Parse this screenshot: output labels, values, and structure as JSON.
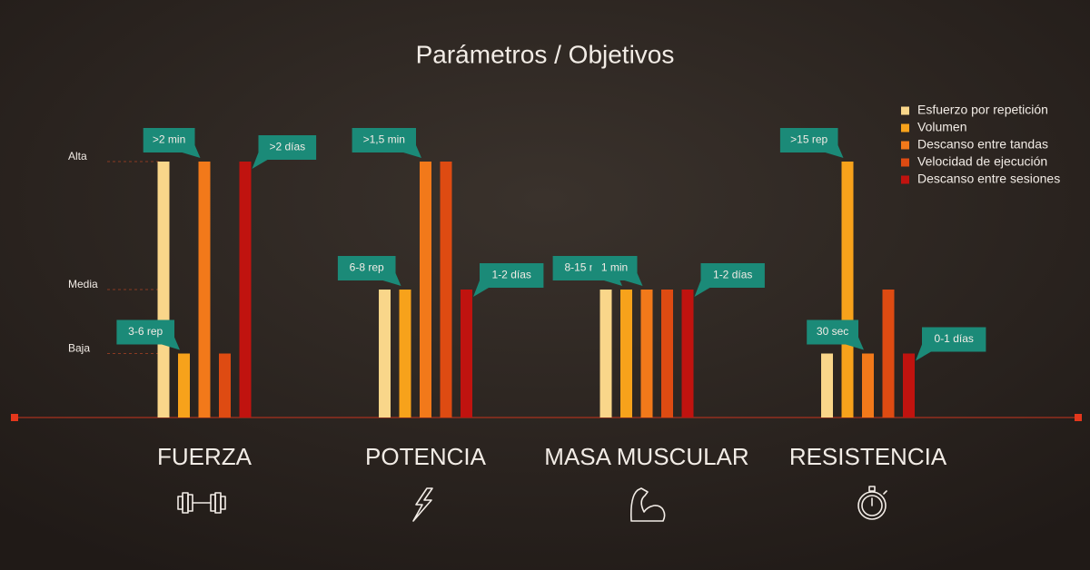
{
  "chart_data": {
    "type": "bar",
    "title": "Parámetros / Objetivos",
    "categories": [
      "FUERZA",
      "POTENCIA",
      "MASA MUSCULAR",
      "RESISTENCIA"
    ],
    "series": [
      {
        "name": "Esfuerzo por repetición",
        "color": "#f9d68a",
        "values": [
          4,
          2,
          2,
          1
        ]
      },
      {
        "name": "Volumen",
        "color": "#f7a21b",
        "values": [
          1,
          2,
          2,
          4
        ]
      },
      {
        "name": "Descanso entre tandas",
        "color": "#f2791a",
        "values": [
          4,
          4,
          2,
          1
        ]
      },
      {
        "name": "Velocidad de ejecución",
        "color": "#de4b12",
        "values": [
          1,
          4,
          2,
          2
        ]
      },
      {
        "name": "Descanso entre sesiones",
        "color": "#c0130f",
        "values": [
          4,
          2,
          2,
          1
        ]
      }
    ],
    "ylim": [
      0,
      4
    ],
    "yticks": [
      {
        "value": 1,
        "label": "Baja"
      },
      {
        "value": 2,
        "label": "Media"
      },
      {
        "value": 4,
        "label": "Alta"
      }
    ],
    "grid": true,
    "legend": "top-right",
    "annotations": [
      {
        "text": "3-6 rep",
        "category": "FUERZA",
        "series": "Volumen"
      },
      {
        "text": ">2 min",
        "category": "FUERZA",
        "series": "Descanso entre tandas"
      },
      {
        "text": ">2 días",
        "category": "FUERZA",
        "series": "Descanso entre sesiones"
      },
      {
        "text": "6-8 rep",
        "category": "POTENCIA",
        "series": "Volumen"
      },
      {
        "text": ">1,5 min",
        "category": "POTENCIA",
        "series": "Descanso entre tandas"
      },
      {
        "text": "1-2 días",
        "category": "POTENCIA",
        "series": "Descanso entre sesiones"
      },
      {
        "text": "8-15 rep",
        "category": "MASA MUSCULAR",
        "series": "Volumen"
      },
      {
        "text": "1 min",
        "category": "MASA MUSCULAR",
        "series": "Descanso entre tandas"
      },
      {
        "text": "1-2 días",
        "category": "MASA MUSCULAR",
        "series": "Descanso entre sesiones"
      },
      {
        "text": ">15 rep",
        "category": "RESISTENCIA",
        "series": "Volumen"
      },
      {
        "text": "30 sec",
        "category": "RESISTENCIA",
        "series": "Descanso entre tandas"
      },
      {
        "text": "0-1 días",
        "category": "RESISTENCIA",
        "series": "Descanso entre sesiones"
      }
    ]
  }
}
